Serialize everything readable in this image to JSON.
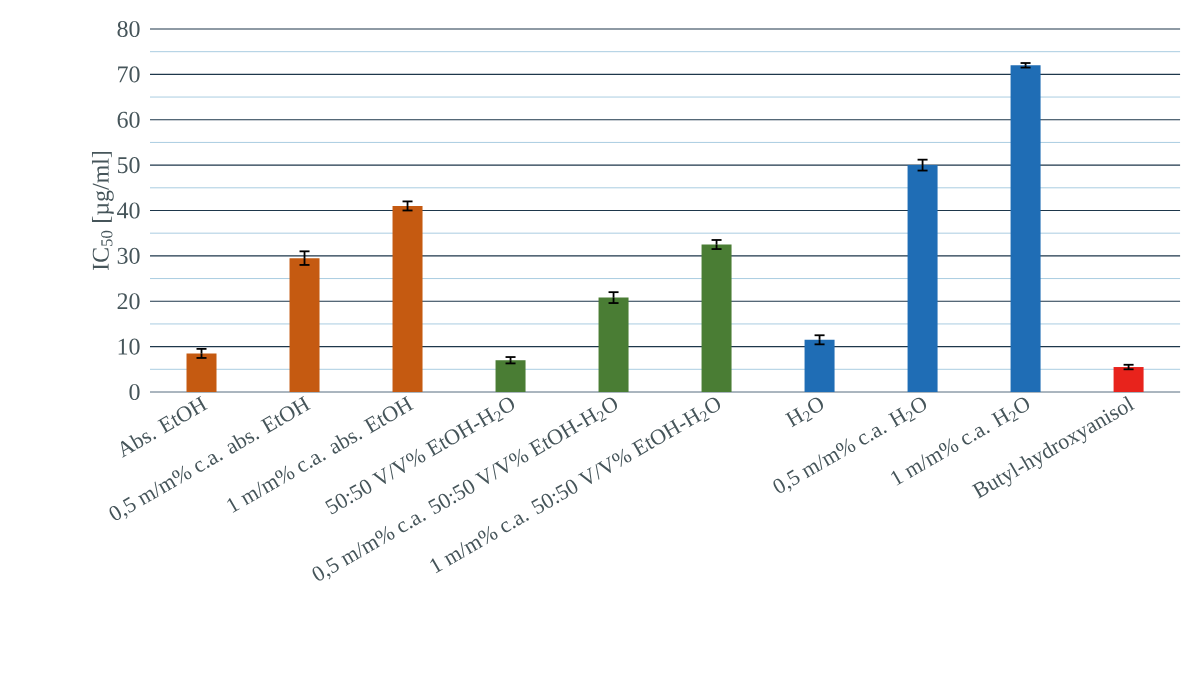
{
  "chart_data": {
    "type": "bar",
    "ylabel": "IC$_{50}$ [µg/ml]",
    "categories": [
      "Abs. EtOH",
      "0,5 m/m% c.a. abs. EtOH",
      "1 m/m% c.a. abs. EtOH",
      "50:50 V/V% EtOH-H$_{2}$O",
      "0,5 m/m% c.a. 50:50 V/V% EtOH-H$_{2}$O",
      "1 m/m% c.a. 50:50 V/V% EtOH-H$_{2}$O",
      "H$_{2}$O",
      "0,5 m/m% c.a. H$_{2}$O",
      "1 m/m% c.a. H$_{2}$O",
      "Butyl-hydroxyanisol"
    ],
    "values": [
      8.5,
      29.5,
      41,
      7,
      20.8,
      32.5,
      11.5,
      50,
      72,
      5.5
    ],
    "errors": [
      1,
      1.5,
      1,
      0.7,
      1.2,
      1,
      1,
      1.2,
      0.5,
      0.5
    ],
    "colors": [
      "#c55a11",
      "#c55a11",
      "#c55a11",
      "#4a7d34",
      "#4a7d34",
      "#4a7d34",
      "#1f6db5",
      "#1f6db5",
      "#1f6db5",
      "#e8231c"
    ],
    "ylim": [
      0,
      80
    ],
    "yticks": [
      0,
      {
        "value": 5,
        "label": null
      },
      10,
      {
        "value": 15,
        "label": null
      },
      20,
      {
        "value": 25,
        "label": null
      },
      30,
      {
        "value": 35,
        "label": null
      },
      40,
      {
        "value": 45,
        "label": null
      },
      50,
      {
        "value": 55,
        "label": null
      },
      60,
      {
        "value": 65,
        "label": null
      },
      70,
      {
        "value": 75,
        "label": null
      },
      80
    ],
    "grid": "y"
  }
}
